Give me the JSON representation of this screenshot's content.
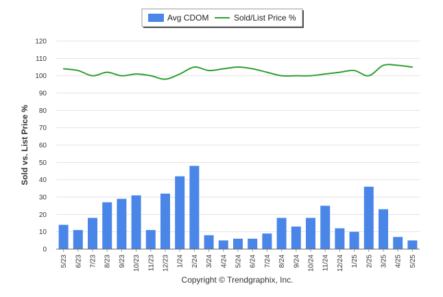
{
  "chart_data": {
    "type": "bar",
    "title": "",
    "xlabel": "",
    "ylabel": "Sold vs. List Price %",
    "ylim": [
      0,
      120
    ],
    "yticks": [
      0,
      10,
      20,
      30,
      40,
      50,
      60,
      70,
      80,
      90,
      100,
      110,
      120
    ],
    "grid": true,
    "legend_position": "top-center",
    "categories": [
      "5/23",
      "6/23",
      "7/23",
      "8/23",
      "9/23",
      "10/23",
      "11/23",
      "12/23",
      "1/24",
      "2/24",
      "3/24",
      "4/24",
      "5/24",
      "6/24",
      "7/24",
      "8/24",
      "9/24",
      "10/24",
      "11/24",
      "12/24",
      "1/25",
      "2/25",
      "3/25",
      "4/25",
      "5/25"
    ],
    "series": [
      {
        "name": "Avg CDOM",
        "type": "bar",
        "color": "#4a86e8",
        "values": [
          14,
          11,
          18,
          27,
          29,
          31,
          11,
          32,
          42,
          48,
          8,
          5,
          6,
          6,
          9,
          18,
          13,
          18,
          25,
          12,
          10,
          36,
          23,
          7,
          5
        ]
      },
      {
        "name": "Sold/List Price %",
        "type": "line",
        "color": "#2ca02c",
        "values": [
          104,
          103,
          100,
          102,
          100,
          101,
          100,
          98,
          101,
          105,
          103,
          104,
          105,
          104,
          102,
          100,
          100,
          100,
          101,
          102,
          103,
          100,
          106,
          106,
          105
        ]
      }
    ]
  },
  "footer": {
    "copyright": "Copyright © Trendgraphix, Inc."
  }
}
